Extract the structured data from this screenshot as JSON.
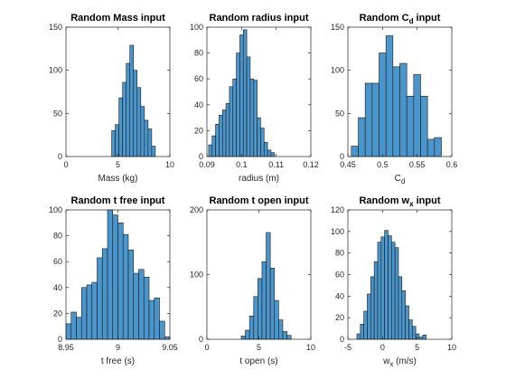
{
  "figure": {
    "background": "#ffffff",
    "bar_color": "#4a96cc",
    "edge_color": "#1a1a1a"
  },
  "chart_data": [
    {
      "type": "bar",
      "title": "Random Mass input",
      "xlabel": "Mass (kg)",
      "ylabel": "",
      "xlim": [
        0,
        10
      ],
      "ylim": [
        0,
        150
      ],
      "xticks": [
        "0",
        "5",
        "10"
      ],
      "xtick_values": [
        0,
        5,
        10
      ],
      "yticks": [
        "0",
        "50",
        "100",
        "150"
      ],
      "ytick_values": [
        0,
        50,
        100,
        150
      ],
      "bin_edges": [
        4.4,
        4.75,
        5.1,
        5.45,
        5.8,
        6.15,
        6.5,
        6.85,
        7.2,
        7.55,
        7.9,
        8.25,
        8.6
      ],
      "values": [
        30,
        37,
        68,
        86,
        108,
        129,
        100,
        80,
        58,
        42,
        32,
        12
      ]
    },
    {
      "type": "bar",
      "title": "Random radius input",
      "xlabel": "radius (m)",
      "ylabel": "",
      "xlim": [
        0.09,
        0.12
      ],
      "ylim": [
        0,
        100
      ],
      "xticks": [
        "0.09",
        "0.1",
        "0.11",
        "0.12"
      ],
      "xtick_values": [
        0.09,
        0.1,
        0.11,
        0.12
      ],
      "yticks": [
        "0",
        "20",
        "40",
        "60",
        "80",
        "100"
      ],
      "ytick_values": [
        0,
        20,
        40,
        60,
        80,
        100
      ],
      "bin_edges": [
        0.0905,
        0.0915,
        0.0925,
        0.0935,
        0.0945,
        0.0955,
        0.0965,
        0.0975,
        0.0985,
        0.0995,
        0.1005,
        0.1015,
        0.1025,
        0.1035,
        0.1045,
        0.1055,
        0.1065,
        0.1075,
        0.1085,
        0.1095
      ],
      "values": [
        9,
        16,
        25,
        32,
        36,
        41,
        54,
        60,
        80,
        94,
        98,
        77,
        60,
        59,
        30,
        22,
        11,
        5,
        3
      ]
    },
    {
      "type": "bar",
      "title": "Random C",
      "title_subscript": "d",
      "title_suffix": " input",
      "xlabel": "C",
      "xlabel_subscript": "d",
      "ylabel": "",
      "xlim": [
        0.45,
        0.6
      ],
      "ylim": [
        0,
        150
      ],
      "xticks": [
        "0.45",
        "0.5",
        "0.55",
        "0.6"
      ],
      "xtick_values": [
        0.45,
        0.5,
        0.55,
        0.6
      ],
      "yticks": [
        "0",
        "50",
        "100",
        "150"
      ],
      "ytick_values": [
        0,
        50,
        100,
        150
      ],
      "bin_edges": [
        0.455,
        0.465,
        0.475,
        0.485,
        0.495,
        0.505,
        0.515,
        0.525,
        0.535,
        0.545,
        0.555,
        0.565,
        0.575,
        0.585
      ],
      "values": [
        12,
        45,
        85,
        85,
        120,
        140,
        104,
        108,
        70,
        95,
        70,
        20,
        22
      ]
    },
    {
      "type": "bar",
      "title": "Random t free input",
      "xlabel": "t free (s)",
      "ylabel": "",
      "xlim": [
        8.95,
        9.05
      ],
      "ylim": [
        0,
        100
      ],
      "xticks": [
        "8.95",
        "9",
        "9.05"
      ],
      "xtick_values": [
        8.95,
        9.0,
        9.05
      ],
      "yticks": [
        "0",
        "20",
        "40",
        "60",
        "80",
        "100"
      ],
      "ytick_values": [
        0,
        20,
        40,
        60,
        80,
        100
      ],
      "bin_edges": [
        8.95,
        8.955,
        8.96,
        8.965,
        8.97,
        8.975,
        8.98,
        8.985,
        8.99,
        8.995,
        9.0,
        9.005,
        9.01,
        9.015,
        9.02,
        9.025,
        9.03,
        9.035,
        9.04,
        9.045,
        9.05
      ],
      "values": [
        12,
        21,
        17,
        40,
        42,
        44,
        63,
        70,
        100,
        96,
        90,
        81,
        69,
        51,
        54,
        48,
        30,
        32,
        14,
        2
      ]
    },
    {
      "type": "bar",
      "title": "Random t open input",
      "xlabel": "t open (s)",
      "ylabel": "",
      "xlim": [
        0,
        10
      ],
      "ylim": [
        0,
        200
      ],
      "xticks": [
        "0",
        "5",
        "10"
      ],
      "xtick_values": [
        0,
        5,
        10
      ],
      "yticks": [
        "0",
        "100",
        "200"
      ],
      "ytick_values": [
        0,
        100,
        200
      ],
      "bin_edges": [
        3.3,
        3.7,
        4.1,
        4.5,
        4.9,
        5.3,
        5.7,
        6.1,
        6.5,
        6.9,
        7.3,
        7.7,
        8.1
      ],
      "values": [
        5,
        14,
        36,
        66,
        94,
        120,
        165,
        110,
        60,
        30,
        12,
        6
      ]
    },
    {
      "type": "bar",
      "title": "Random w",
      "title_subscript": "x",
      "title_suffix": " input",
      "xlabel": "w",
      "xlabel_subscript": "x",
      "xlabel_suffix": " (m/s)",
      "ylabel": "",
      "xlim": [
        -5,
        10
      ],
      "ylim": [
        0,
        120
      ],
      "xticks": [
        "-5",
        "0",
        "5",
        "10"
      ],
      "xtick_values": [
        -5,
        0,
        5,
        10
      ],
      "yticks": [
        "0",
        "20",
        "40",
        "60",
        "80",
        "100",
        "120"
      ],
      "ytick_values": [
        0,
        20,
        40,
        60,
        80,
        100,
        120
      ],
      "bin_edges": [
        -3.7,
        -3.2,
        -2.7,
        -2.2,
        -1.7,
        -1.2,
        -0.7,
        -0.2,
        0.3,
        0.8,
        1.3,
        1.8,
        2.3,
        2.8,
        3.3,
        3.8,
        4.3,
        4.8,
        5.3,
        5.8,
        6.3
      ],
      "values": [
        5,
        14,
        26,
        42,
        58,
        72,
        90,
        95,
        101,
        96,
        90,
        85,
        58,
        45,
        31,
        18,
        12,
        5,
        2,
        4
      ]
    }
  ]
}
